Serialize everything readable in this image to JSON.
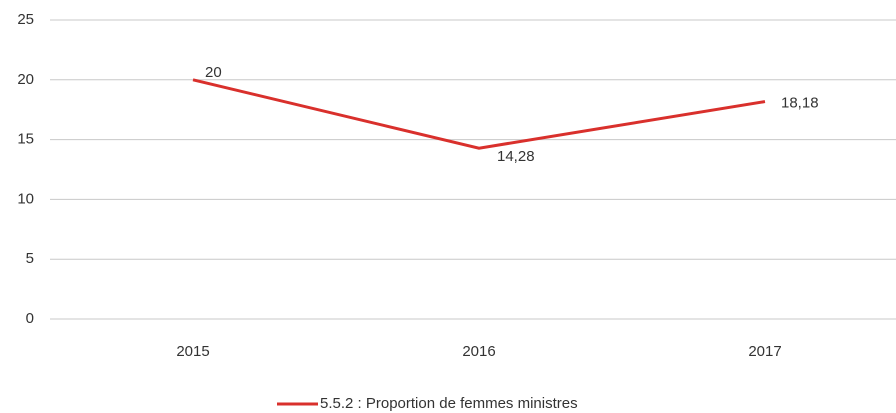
{
  "chart_data": {
    "type": "line",
    "categories": [
      "2015",
      "2016",
      "2017"
    ],
    "series": [
      {
        "name": "5.5.2 : Proportion de femmes ministres",
        "color": "#d9302c",
        "values": [
          20,
          14.28,
          18.18
        ],
        "value_labels": [
          "20",
          "14,28",
          "18,18"
        ]
      }
    ],
    "ylim": [
      0,
      25
    ],
    "yticks": [
      0,
      5,
      10,
      15,
      20,
      25
    ],
    "grid": true,
    "legend": "bottom"
  }
}
